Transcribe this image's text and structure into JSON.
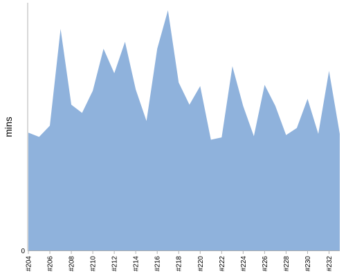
{
  "chart_data": {
    "type": "area",
    "ylabel": "mins",
    "xlabel": "",
    "title": "",
    "grid": false,
    "legend": "none",
    "x": [
      "#204",
      "#205",
      "#206",
      "#207",
      "#208",
      "#209",
      "#210",
      "#211",
      "#212",
      "#213",
      "#214",
      "#215",
      "#216",
      "#217",
      "#218",
      "#219",
      "#220",
      "#221",
      "#222",
      "#223",
      "#224",
      "#225",
      "#226",
      "#227",
      "#228",
      "#229",
      "#230",
      "#231",
      "#232",
      "#233"
    ],
    "x_tick_labels": [
      "#204",
      "#206",
      "#208",
      "#210",
      "#212",
      "#214",
      "#216",
      "#218",
      "#220",
      "#222",
      "#224",
      "#226",
      "#228",
      "#230",
      "#232"
    ],
    "y_tick_labels": [
      "0"
    ],
    "values": [
      50.5,
      48.7,
      53.5,
      95.0,
      62.5,
      59.0,
      68.5,
      86.5,
      76.0,
      89.5,
      69.0,
      55.5,
      86.5,
      103.0,
      72.0,
      62.5,
      70.5,
      47.5,
      48.5,
      79.0,
      62.0,
      49.0,
      71.0,
      62.0,
      49.5,
      52.5,
      65.0,
      50.0,
      77.0,
      50.0
    ],
    "ylim": [
      0,
      100
    ],
    "color": "#8fb2dc",
    "axis_color": "#b0b0b0"
  }
}
